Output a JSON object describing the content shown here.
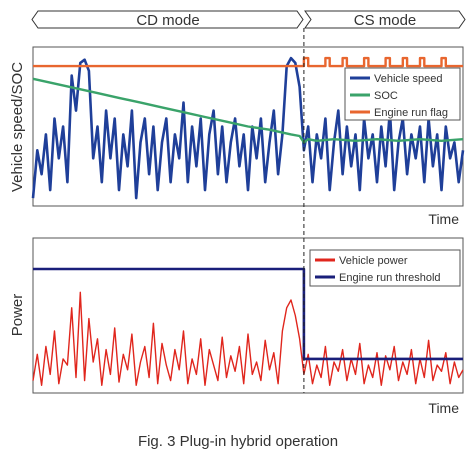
{
  "figure": {
    "caption": "Fig. 3 Plug-in hybrid operation"
  },
  "modes": {
    "cd_label": "CD mode",
    "cs_label": "CS mode"
  },
  "colors": {
    "speed": "#1f3f99",
    "soc": "#3aa36a",
    "flag": "#e8662f",
    "power": "#e0261d",
    "threshold": "#1a1f7a",
    "frame": "#555555",
    "text": "#333333"
  },
  "chart_data": [
    {
      "type": "line",
      "ylabel": "Vehicle speed/SOC",
      "xlabel": "Time",
      "xlim": [
        0,
        100
      ],
      "ylim": [
        0,
        100
      ],
      "grid": false,
      "legend_position": "top-right",
      "mode_switch_x": 63,
      "series": [
        {
          "name": "Vehicle speed",
          "x": [
            0,
            1,
            2,
            3,
            4,
            5,
            6,
            7,
            8,
            9,
            10,
            11,
            12,
            13,
            14,
            15,
            16,
            17,
            18,
            19,
            20,
            21,
            22,
            23,
            24,
            25,
            26,
            27,
            28,
            29,
            30,
            31,
            32,
            33,
            34,
            35,
            36,
            37,
            38,
            39,
            40,
            41,
            42,
            43,
            44,
            45,
            46,
            47,
            48,
            49,
            50,
            51,
            52,
            53,
            54,
            55,
            56,
            57,
            58,
            59,
            60,
            61,
            62,
            63,
            64,
            65,
            66,
            67,
            68,
            69,
            70,
            71,
            72,
            73,
            74,
            75,
            76,
            77,
            78,
            79,
            80,
            81,
            82,
            83,
            84,
            85,
            86,
            87,
            88,
            89,
            90,
            91,
            92,
            93,
            94,
            95,
            96,
            97,
            98,
            99,
            100
          ],
          "values": [
            5,
            35,
            20,
            45,
            10,
            55,
            30,
            50,
            15,
            82,
            60,
            90,
            92,
            85,
            30,
            50,
            15,
            60,
            30,
            55,
            10,
            45,
            25,
            60,
            5,
            40,
            55,
            20,
            50,
            10,
            40,
            55,
            15,
            45,
            30,
            65,
            15,
            50,
            25,
            55,
            10,
            45,
            60,
            20,
            50,
            15,
            40,
            55,
            25,
            45,
            10,
            50,
            30,
            55,
            15,
            40,
            60,
            20,
            45,
            88,
            93,
            90,
            75,
            35,
            50,
            15,
            45,
            30,
            55,
            10,
            40,
            60,
            20,
            50,
            25,
            45,
            10,
            55,
            30,
            45,
            15,
            50,
            25,
            60,
            10,
            40,
            55,
            20,
            45,
            30,
            50,
            15,
            55,
            25,
            45,
            10,
            50,
            30,
            40,
            15,
            35
          ]
        },
        {
          "name": "SOC",
          "x": [
            0,
            5,
            10,
            15,
            20,
            25,
            30,
            35,
            40,
            45,
            50,
            55,
            60,
            62,
            63,
            64,
            66,
            70,
            75,
            80,
            85,
            90,
            95,
            100
          ],
          "values": [
            80,
            77,
            74,
            71,
            68,
            65,
            62,
            59,
            56,
            53,
            50,
            48,
            45,
            44,
            40,
            42,
            41,
            42,
            41,
            42,
            41,
            42,
            41,
            42
          ]
        },
        {
          "name": "Engine run flag",
          "x": [
            0,
            63,
            63,
            64,
            64,
            68,
            68,
            69,
            69,
            72,
            72,
            73,
            73,
            77,
            77,
            78,
            78,
            82,
            82,
            83,
            83,
            86,
            86,
            87,
            87,
            90,
            90,
            91,
            91,
            95,
            95,
            96,
            96,
            100
          ],
          "values": [
            88,
            88,
            93,
            93,
            88,
            88,
            93,
            93,
            88,
            88,
            93,
            93,
            88,
            88,
            93,
            93,
            88,
            88,
            93,
            93,
            88,
            88,
            93,
            93,
            88,
            88,
            93,
            93,
            88,
            88,
            93,
            93,
            88,
            88
          ]
        }
      ]
    },
    {
      "type": "line",
      "ylabel": "Power",
      "xlabel": "Time",
      "xlim": [
        0,
        100
      ],
      "ylim": [
        0,
        100
      ],
      "grid": false,
      "legend_position": "top-right",
      "mode_switch_x": 63,
      "series": [
        {
          "name": "Vehicle power",
          "x": [
            0,
            1,
            2,
            3,
            4,
            5,
            6,
            7,
            8,
            9,
            10,
            11,
            12,
            13,
            14,
            15,
            16,
            17,
            18,
            19,
            20,
            21,
            22,
            23,
            24,
            25,
            26,
            27,
            28,
            29,
            30,
            31,
            32,
            33,
            34,
            35,
            36,
            37,
            38,
            39,
            40,
            41,
            42,
            43,
            44,
            45,
            46,
            47,
            48,
            49,
            50,
            51,
            52,
            53,
            54,
            55,
            56,
            57,
            58,
            59,
            60,
            61,
            62,
            63,
            64,
            65,
            66,
            67,
            68,
            69,
            70,
            71,
            72,
            73,
            74,
            75,
            76,
            77,
            78,
            79,
            80,
            81,
            82,
            83,
            84,
            85,
            86,
            87,
            88,
            89,
            90,
            91,
            92,
            93,
            94,
            95,
            96,
            97,
            98,
            99,
            100
          ],
          "values": [
            8,
            25,
            5,
            30,
            12,
            40,
            6,
            22,
            18,
            55,
            10,
            65,
            8,
            48,
            20,
            35,
            5,
            28,
            12,
            42,
            7,
            25,
            15,
            38,
            5,
            20,
            30,
            10,
            45,
            6,
            32,
            18,
            8,
            28,
            15,
            40,
            6,
            22,
            12,
            35,
            5,
            28,
            18,
            8,
            36,
            10,
            24,
            14,
            30,
            6,
            38,
            12,
            20,
            8,
            34,
            15,
            26,
            6,
            40,
            55,
            60,
            50,
            35,
            12,
            25,
            6,
            18,
            10,
            30,
            5,
            20,
            14,
            28,
            8,
            22,
            12,
            32,
            6,
            18,
            10,
            26,
            5,
            24,
            15,
            30,
            8,
            20,
            12,
            28,
            6,
            22,
            10,
            34,
            8,
            18,
            14,
            26,
            6,
            20,
            10,
            15
          ]
        },
        {
          "name": "Engine run threshold",
          "x": [
            0,
            63,
            63,
            100
          ],
          "values": [
            80,
            80,
            22,
            22
          ]
        }
      ]
    }
  ]
}
